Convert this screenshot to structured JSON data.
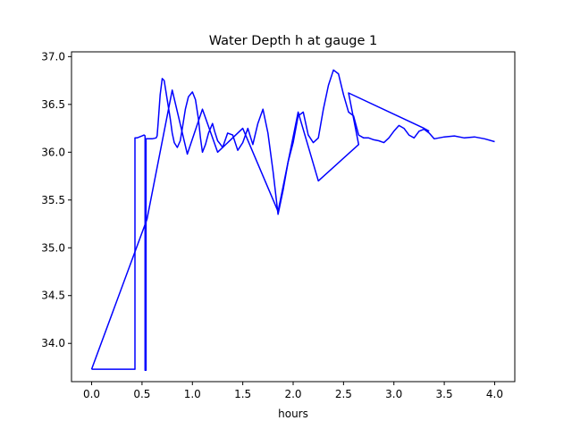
{
  "chart_data": {
    "type": "line",
    "title": "Water Depth h at gauge 1",
    "xlabel": "hours",
    "ylabel": "",
    "xlim": [
      -0.2,
      4.2
    ],
    "ylim": [
      33.6,
      37.05
    ],
    "xticks": [
      0.0,
      0.5,
      1.0,
      1.5,
      2.0,
      2.5,
      3.0,
      3.5,
      4.0
    ],
    "xtick_labels": [
      "0.0",
      "0.5",
      "1.0",
      "1.5",
      "2.0",
      "2.5",
      "3.0",
      "3.5",
      "4.0"
    ],
    "yticks": [
      34.0,
      34.5,
      35.0,
      35.5,
      36.0,
      36.5,
      37.0
    ],
    "ytick_labels": [
      "34.0",
      "34.5",
      "35.0",
      "35.5",
      "36.0",
      "36.5",
      "37.0"
    ],
    "grid": false,
    "legend": "none",
    "series": [
      {
        "color": "#0000ff",
        "x": [
          0.0,
          0.43,
          0.43,
          0.45,
          0.5,
          0.52,
          0.53,
          0.53,
          0.54,
          0.54,
          0.6,
          0.64,
          0.65,
          0.66,
          0.68,
          0.7,
          0.72,
          0.75,
          0.78,
          0.8,
          0.82,
          0.85,
          0.88,
          0.9,
          0.93,
          0.96,
          1.0,
          1.03,
          1.06,
          1.08,
          1.1,
          1.13,
          1.16,
          1.2,
          1.22,
          1.25,
          1.28,
          1.3,
          1.35,
          1.4,
          1.45,
          1.5,
          1.55,
          1.6,
          1.65,
          1.7,
          1.75,
          1.8,
          1.85,
          1.9,
          1.95,
          2.0,
          2.05,
          2.1,
          2.15,
          2.2,
          2.25,
          2.3,
          2.35,
          2.4,
          2.45,
          2.5,
          2.55,
          2.6,
          2.65,
          2.7,
          2.75,
          2.8,
          2.85,
          2.9,
          2.95,
          3.0,
          3.05,
          3.1,
          3.15,
          3.2,
          3.25,
          3.3,
          3.35,
          3.4,
          3.5,
          3.6,
          3.7,
          3.8,
          3.9,
          4.0
        ],
        "y": [
          33.73,
          33.73,
          36.15,
          36.15,
          36.17,
          36.18,
          36.17,
          33.72,
          33.72,
          36.14,
          36.14,
          36.15,
          36.17,
          36.3,
          36.6,
          36.77,
          36.75,
          36.55,
          36.35,
          36.2,
          36.1,
          36.05,
          36.12,
          36.25,
          36.45,
          36.58,
          36.63,
          36.55,
          36.35,
          36.15,
          36.0,
          36.08,
          36.2,
          36.3,
          36.22,
          36.12,
          36.08,
          36.05,
          36.2,
          36.18,
          36.02,
          36.1,
          36.25,
          36.08,
          36.3,
          36.45,
          36.2,
          35.8,
          35.35,
          35.6,
          35.9,
          36.1,
          36.38,
          36.42,
          36.18,
          36.1,
          36.15,
          36.45,
          36.7,
          36.86,
          36.82,
          36.6,
          36.42,
          36.38,
          36.18,
          36.15,
          36.15,
          36.13,
          36.12,
          36.1,
          36.15,
          36.22,
          36.28,
          36.25,
          36.18,
          36.15,
          36.22,
          36.24,
          36.2,
          36.14,
          36.16,
          36.17,
          36.15,
          36.16,
          36.14,
          36.11
        ]
      },
      {
        "color": "#0000ff",
        "x": [
          0.0,
          0.55,
          0.8,
          0.95,
          1.1,
          1.25,
          1.5,
          1.85,
          2.05,
          2.25,
          2.65,
          2.55,
          3.3,
          3.35
        ],
        "y": [
          33.73,
          35.3,
          36.65,
          35.98,
          36.45,
          36.0,
          36.25,
          35.38,
          36.42,
          35.7,
          36.08,
          36.62,
          36.25,
          36.22
        ]
      }
    ]
  }
}
